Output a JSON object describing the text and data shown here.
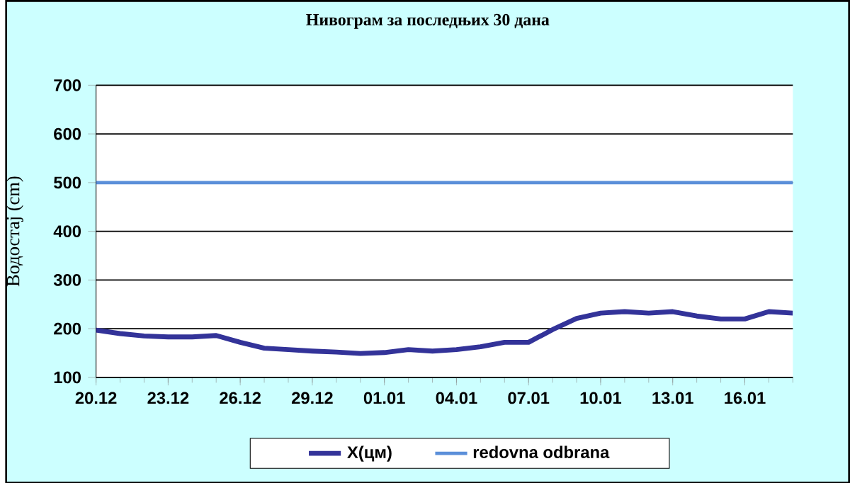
{
  "chart_data": {
    "type": "line",
    "title": "Нивограм за последњих 30 дана",
    "ylabel": "Водостај (cm)",
    "categories": [
      "20.12",
      null,
      null,
      "23.12",
      null,
      null,
      "26.12",
      null,
      null,
      "29.12",
      null,
      null,
      "01.01",
      null,
      null,
      "04.01",
      null,
      null,
      "07.01",
      null,
      null,
      "10.01",
      null,
      null,
      "13.01",
      null,
      null,
      "16.01",
      null,
      null
    ],
    "series": [
      {
        "name": "X(цм)",
        "color": "#333399",
        "values": [
          197,
          190,
          185,
          183,
          183,
          186,
          172,
          160,
          157,
          154,
          152,
          149,
          151,
          157,
          154,
          157,
          163,
          172,
          172,
          198,
          221,
          232,
          235,
          232,
          235,
          226,
          220,
          220,
          235,
          232
        ]
      }
    ],
    "ref_lines": [
      {
        "axis": "y",
        "value": 500,
        "label": "redovna odbrana",
        "color": "#5b8fd9"
      }
    ],
    "ylim": [
      100,
      700
    ],
    "yticks": [
      100,
      200,
      300,
      400,
      500,
      600,
      700
    ],
    "grid": "y",
    "legend": "bottom"
  }
}
